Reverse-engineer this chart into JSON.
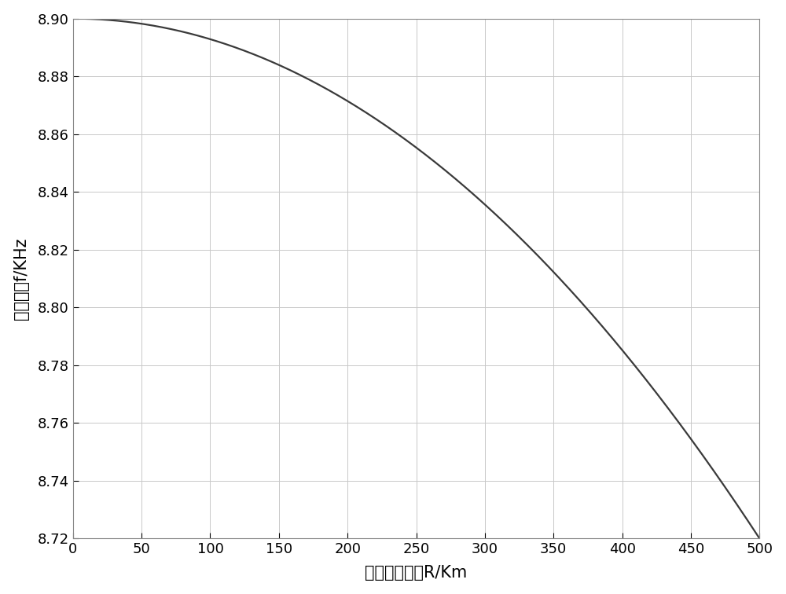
{
  "xlabel": "区域半径大小R/Km",
  "ylabel": "预补偿值f/KHz",
  "xlim": [
    0,
    500
  ],
  "ylim": [
    8.72,
    8.9
  ],
  "xticks": [
    0,
    50,
    100,
    150,
    200,
    250,
    300,
    350,
    400,
    450,
    500
  ],
  "yticks": [
    8.72,
    8.74,
    8.76,
    8.78,
    8.8,
    8.82,
    8.84,
    8.86,
    8.88,
    8.9
  ],
  "line_color": "#3a3a3a",
  "line_width": 1.6,
  "background_color": "#ffffff",
  "grid_color": "#c8c8c8",
  "f_start": 8.9,
  "f_end": 8.72,
  "x_end": 500,
  "n_points": 2000,
  "xlabel_fontsize": 15,
  "ylabel_fontsize": 15,
  "tick_fontsize": 13
}
